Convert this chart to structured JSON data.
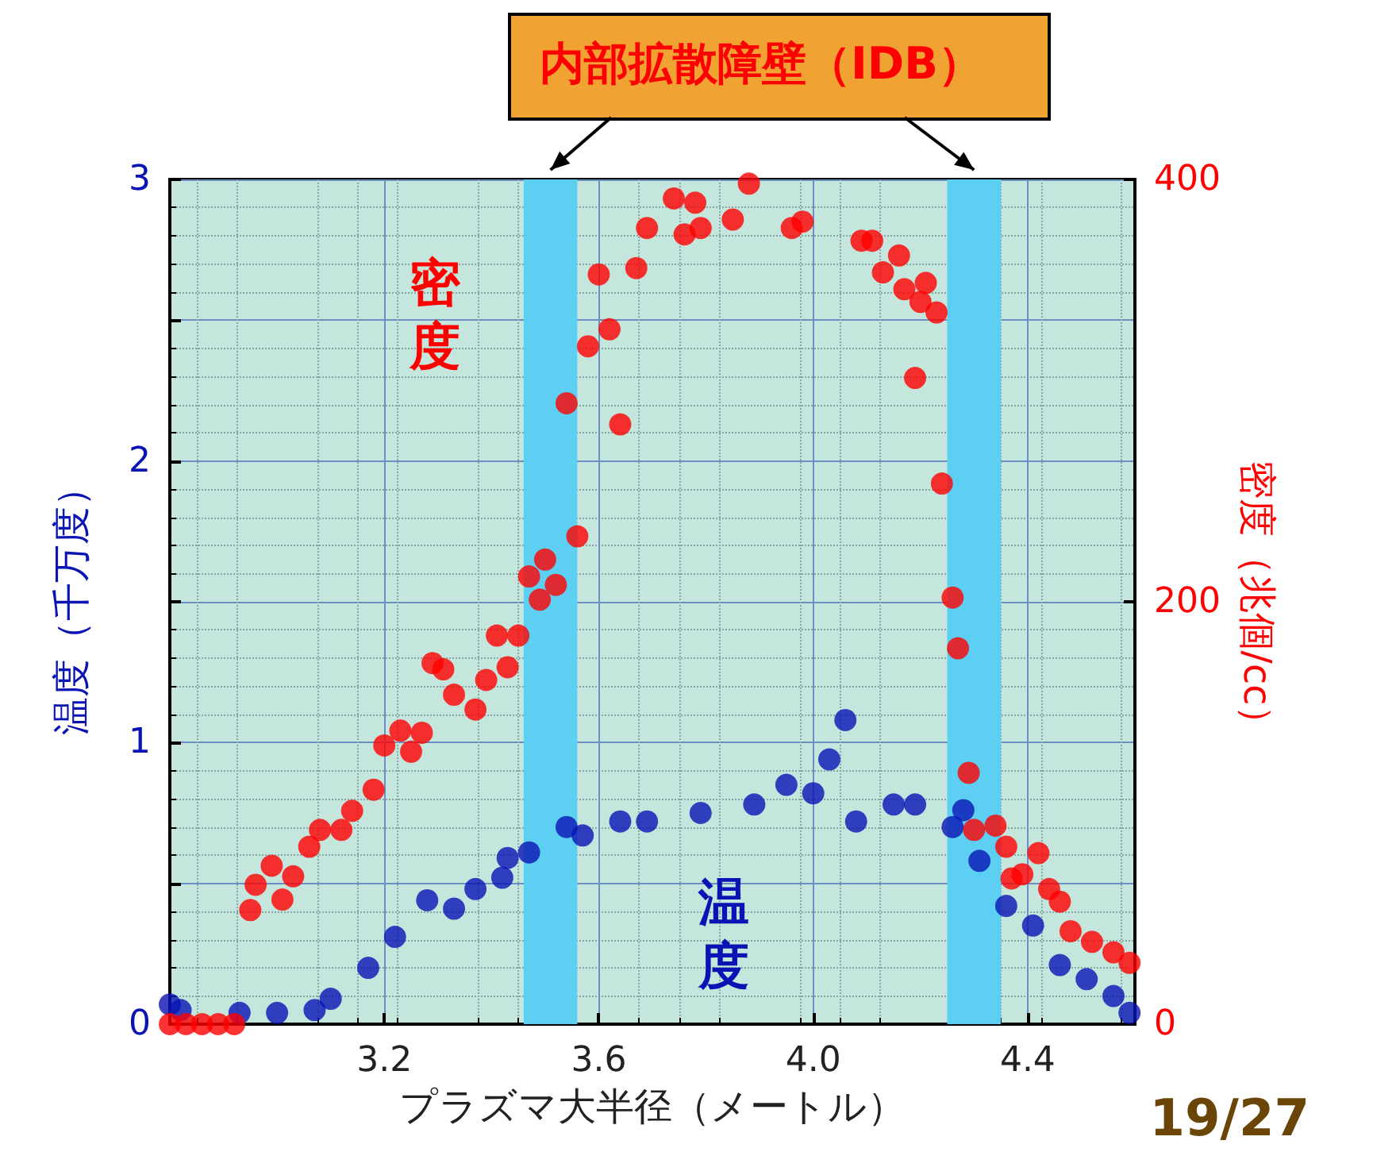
{
  "chart_data": {
    "type": "scatter",
    "xlabel": "プラズマ大半径（メートル）",
    "ylabel": "温度（千万度）",
    "y2label": "密度（兆個/cc）",
    "annotations": [
      "内部拡散障壁（IDB）",
      "19/27"
    ],
    "xlim": [
      2.8,
      4.6
    ],
    "xticks": [
      3.2,
      3.6,
      {
        "value": 4,
        "label": "4.0"
      },
      4.4
    ],
    "ylim": [
      0,
      3
    ],
    "yticks": [
      0,
      {
        "value": 0.5,
        "label": null
      },
      1,
      {
        "value": 1.5,
        "label": null
      },
      2,
      {
        "value": 2.5,
        "label": null
      },
      3
    ],
    "y2lim": [
      0,
      400
    ],
    "y2ticks": [
      0,
      200,
      400
    ],
    "grid": true,
    "marker": "circle",
    "legend": false,
    "bands": [
      {
        "axis": "x",
        "from": 3.46,
        "to": 3.56,
        "color": "#5ccff2"
      },
      {
        "axis": "x",
        "from": 4.25,
        "to": 4.35,
        "color": "#5ccff2"
      }
    ],
    "series": [
      {
        "name": "温度",
        "color": "#0a14b4",
        "x": [
          2.8,
          2.82,
          2.93,
          3.0,
          3.07,
          3.1,
          3.17,
          3.22,
          3.28,
          3.33,
          3.37,
          3.42,
          3.43,
          3.47,
          3.54,
          3.57,
          3.64,
          3.69,
          3.79,
          3.89,
          3.95,
          4.0,
          4.03,
          4.06,
          4.08,
          4.15,
          4.19,
          4.26,
          4.28,
          4.31,
          4.36,
          4.41,
          4.46,
          4.51,
          4.56,
          4.59
        ],
        "values": [
          0.07,
          0.05,
          0.04,
          0.04,
          0.05,
          0.09,
          0.2,
          0.31,
          0.44,
          0.41,
          0.48,
          0.52,
          0.59,
          0.61,
          0.7,
          0.67,
          0.72,
          0.72,
          0.75,
          0.78,
          0.85,
          0.82,
          0.94,
          1.08,
          0.72,
          0.78,
          0.78,
          0.7,
          0.76,
          0.58,
          0.42,
          0.35,
          0.21,
          0.16,
          0.1,
          0.04
        ]
      },
      {
        "name": "密度",
        "color": "#ff0000",
        "axis": "y2",
        "x": [
          2.8,
          2.83,
          2.86,
          2.89,
          2.92,
          2.95,
          2.96,
          2.99,
          3.01,
          3.03,
          3.06,
          3.08,
          3.12,
          3.14,
          3.18,
          3.2,
          3.23,
          3.25,
          3.27,
          3.29,
          3.31,
          3.33,
          3.37,
          3.39,
          3.41,
          3.43,
          3.45,
          3.47,
          3.49,
          3.5,
          3.52,
          3.54,
          3.56,
          3.58,
          3.6,
          3.62,
          3.64,
          3.67,
          3.69,
          3.74,
          3.76,
          3.78,
          3.79,
          3.85,
          3.88,
          3.96,
          3.98,
          4.09,
          4.11,
          4.13,
          4.16,
          4.17,
          4.19,
          4.2,
          4.21,
          4.23,
          4.24,
          4.26,
          4.27,
          4.29,
          4.3,
          4.34,
          4.36,
          4.37,
          4.39,
          4.42,
          4.44,
          4.46,
          4.48,
          4.52,
          4.56,
          4.59
        ],
        "values": [
          0,
          0,
          0,
          0,
          0,
          54,
          66,
          75,
          59,
          70,
          84,
          92,
          92,
          101,
          111,
          132,
          139,
          129,
          138,
          171,
          168,
          156,
          149,
          163,
          184,
          169,
          184,
          212,
          201,
          220,
          208,
          294,
          231,
          321,
          355,
          329,
          284,
          358,
          377,
          391,
          374,
          389,
          377,
          381,
          398,
          377,
          380,
          371,
          371,
          356,
          364,
          348,
          306,
          342,
          351,
          337,
          256,
          202,
          178,
          119,
          92,
          94,
          84,
          69,
          71,
          81,
          64,
          58,
          44,
          39,
          34,
          29
        ]
      }
    ]
  }
}
